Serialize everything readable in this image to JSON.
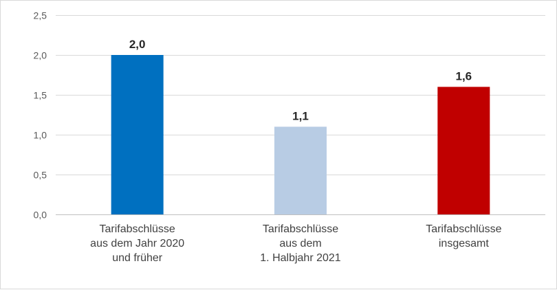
{
  "chart_data": {
    "type": "bar",
    "categories": [
      [
        "Tarifabschlüsse",
        "aus dem Jahr 2020",
        "und früher"
      ],
      [
        "Tarifabschlüsse",
        "aus dem",
        "1. Halbjahr 2021"
      ],
      [
        "Tarifabschlüsse",
        "insgesamt"
      ]
    ],
    "values": [
      2.0,
      1.1,
      1.6
    ],
    "data_labels": [
      "2,0",
      "1,1",
      "1,6"
    ],
    "bar_colors": [
      "#0070c0",
      "#b8cce4",
      "#c00000"
    ],
    "ylim": [
      0,
      2.5
    ],
    "yticks": [
      0,
      0.5,
      1.0,
      1.5,
      2.0,
      2.5
    ],
    "ytick_labels": [
      "0,0",
      "0,5",
      "1,0",
      "1,5",
      "2,0",
      "2,5"
    ],
    "grid": true,
    "legend": "none",
    "title": "",
    "xlabel": "",
    "ylabel": ""
  }
}
